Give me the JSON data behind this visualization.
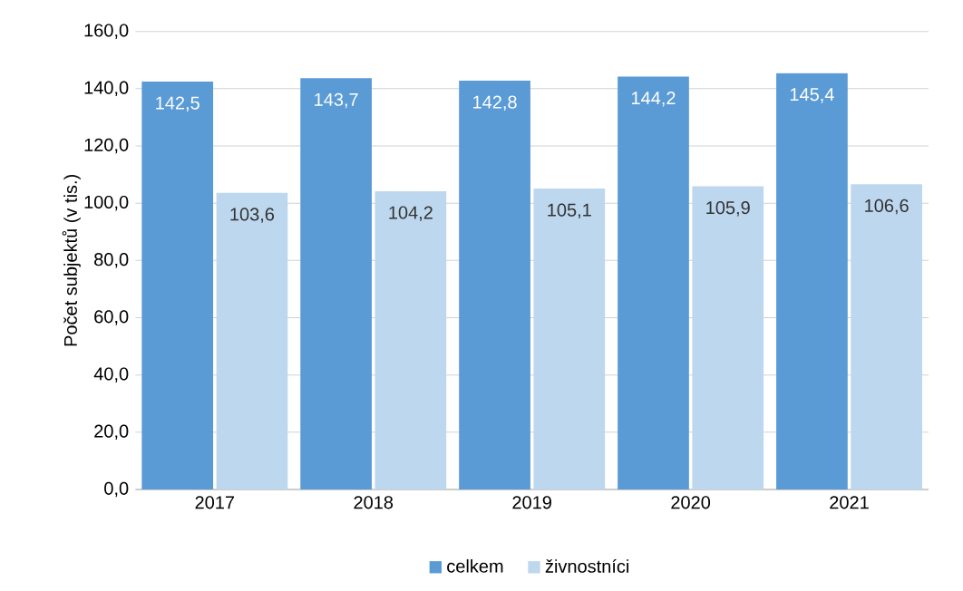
{
  "chart_data": {
    "type": "bar",
    "ylabel": "Počet subjektů (v tis.)",
    "categories": [
      "2017",
      "2018",
      "2019",
      "2020",
      "2021"
    ],
    "series": [
      {
        "name": "celkem",
        "color": "#5b9bd5",
        "values": [
          142.5,
          143.7,
          142.8,
          144.2,
          145.4
        ],
        "value_labels": [
          "142,5",
          "143,7",
          "142,8",
          "144,2",
          "145,4"
        ]
      },
      {
        "name": "živnostníci",
        "color": "#bdd7ee",
        "values": [
          103.6,
          104.2,
          105.1,
          105.9,
          106.6
        ],
        "value_labels": [
          "103,6",
          "104,2",
          "105,1",
          "105,9",
          "106,6"
        ]
      }
    ],
    "ylim": [
      0,
      160
    ],
    "yticks": [
      {
        "value": 0,
        "label": "0,0"
      },
      {
        "value": 20,
        "label": "20,0"
      },
      {
        "value": 40,
        "label": "40,0"
      },
      {
        "value": 60,
        "label": "60,0"
      },
      {
        "value": 80,
        "label": "80,0"
      },
      {
        "value": 100,
        "label": "100,0"
      },
      {
        "value": 120,
        "label": "120,0"
      },
      {
        "value": 140,
        "label": "140,0"
      },
      {
        "value": 160,
        "label": "160,0"
      }
    ],
    "grid": "y",
    "legend": "bottom"
  }
}
